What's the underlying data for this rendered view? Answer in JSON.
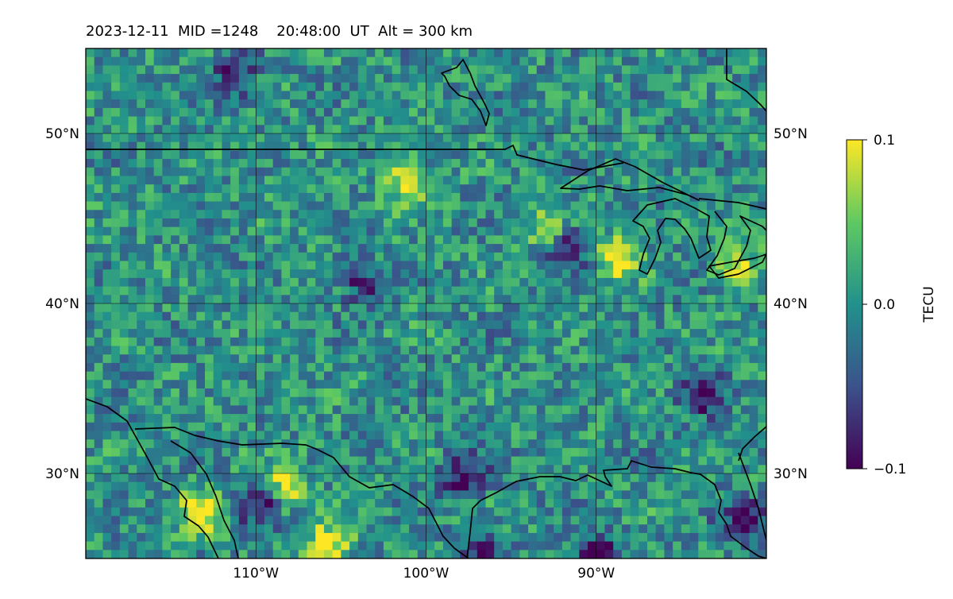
{
  "title": "2023-12-11  MID =1248    20:48:00  UT  Alt = 300 km",
  "map": {
    "lon_range": [
      -120,
      -80
    ],
    "lat_range": [
      25,
      55
    ],
    "lon_ticks": [
      -110,
      -100,
      -90
    ],
    "lat_ticks": [
      30,
      40,
      50
    ],
    "lon_tick_labels": [
      "110°W",
      "100°W",
      "90°W"
    ],
    "lat_tick_labels": [
      "30°N",
      "40°N",
      "50°N"
    ],
    "gridlines": true,
    "coastlines": true,
    "cell_size_deg": 0.5
  },
  "colorbar": {
    "label": "TECU",
    "min": -0.1,
    "max": 0.1,
    "ticks": [
      0.1,
      0.0,
      -0.1
    ],
    "tick_labels": [
      "0.1",
      "0.0",
      "−0.1"
    ],
    "colormap": "viridis",
    "colors": [
      "#440154",
      "#3b528b",
      "#21918c",
      "#5ec962",
      "#fde725"
    ]
  },
  "chart_data": {
    "type": "heatmap",
    "variable": "TECU",
    "vmin": -0.1,
    "vmax": 0.1,
    "grid_resolution_deg": 0.5,
    "hotspots": [
      {
        "lon": -101.5,
        "lat": 47.5,
        "value": 0.1
      },
      {
        "lon": -113.5,
        "lat": 28.0,
        "value": 0.1
      },
      {
        "lon": -108.5,
        "lat": 29.5,
        "value": 0.1
      },
      {
        "lon": -106.0,
        "lat": 26.0,
        "value": 0.1
      },
      {
        "lon": -89.0,
        "lat": 43.0,
        "value": 0.1
      },
      {
        "lon": -82.0,
        "lat": 42.5,
        "value": 0.09
      },
      {
        "lon": -93.0,
        "lat": 44.5,
        "value": 0.08
      },
      {
        "lon": -98.0,
        "lat": 30.0,
        "value": -0.1
      },
      {
        "lon": -110.0,
        "lat": 28.5,
        "value": -0.1
      },
      {
        "lon": -92.0,
        "lat": 43.5,
        "value": -0.1
      },
      {
        "lon": -84.0,
        "lat": 35.0,
        "value": -0.1
      },
      {
        "lon": -81.5,
        "lat": 27.5,
        "value": -0.1
      },
      {
        "lon": -111.5,
        "lat": 53.5,
        "value": -0.08
      },
      {
        "lon": -104.0,
        "lat": 41.5,
        "value": -0.07
      },
      {
        "lon": -90.0,
        "lat": 25.5,
        "value": -0.1
      },
      {
        "lon": -97.0,
        "lat": 25.0,
        "value": -0.1
      }
    ]
  }
}
